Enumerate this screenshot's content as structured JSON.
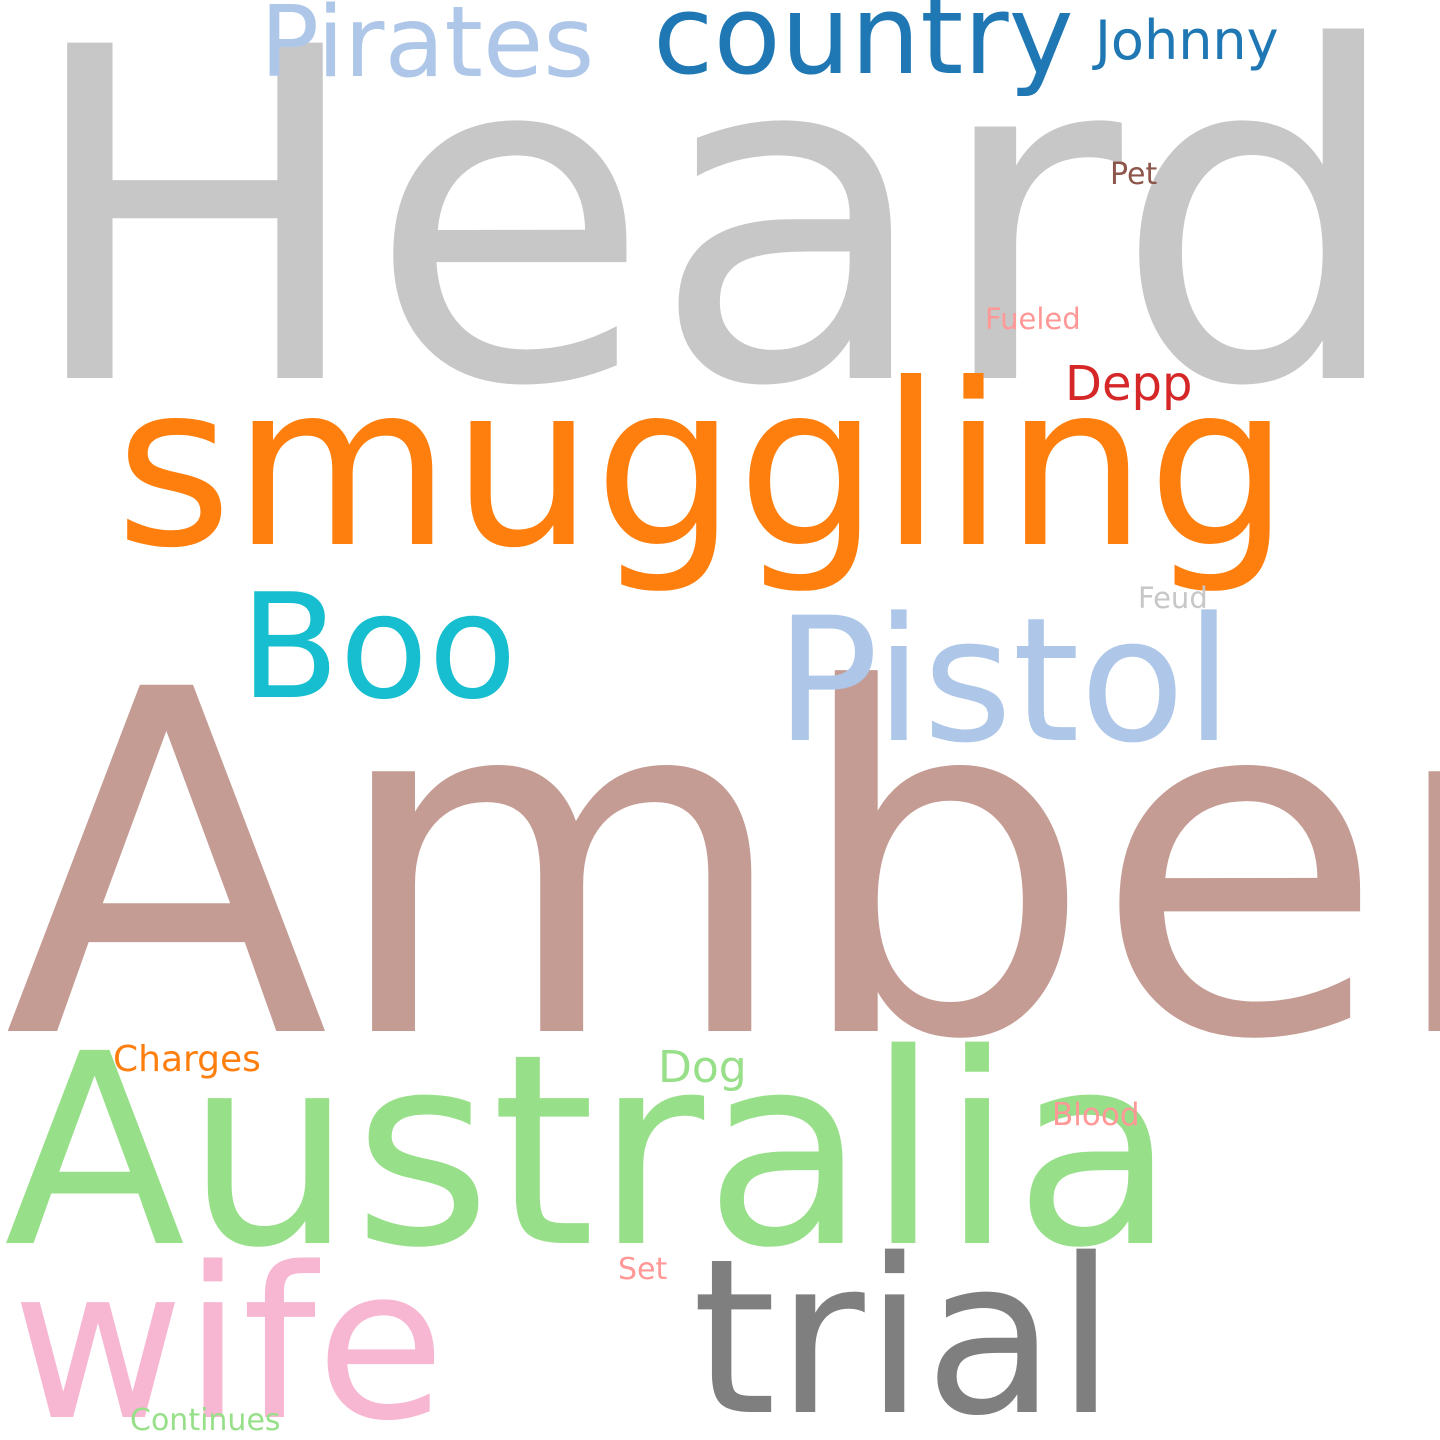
{
  "words": [
    {
      "text": "Heard",
      "color": "#c7c7c7"
    },
    {
      "text": "Amber",
      "color": "#c49c94"
    },
    {
      "text": "smuggling",
      "color": "#ff7f0e"
    },
    {
      "text": "Australia",
      "color": "#98df8a"
    },
    {
      "text": "Pistol",
      "color": "#aec7e8"
    },
    {
      "text": "trial",
      "color": "#7f7f7f"
    },
    {
      "text": "wife",
      "color": "#f7b6d2"
    },
    {
      "text": "Boo",
      "color": "#17becf"
    },
    {
      "text": "country",
      "color": "#1f77b4"
    },
    {
      "text": "Pirates",
      "color": "#aec7e8"
    },
    {
      "text": "Johnny",
      "color": "#1f77b4"
    },
    {
      "text": "Depp",
      "color": "#d62728"
    },
    {
      "text": "Pet",
      "color": "#8c564b"
    },
    {
      "text": "Fueled",
      "color": "#ff9896"
    },
    {
      "text": "Feud",
      "color": "#c7c7c7"
    },
    {
      "text": "Dog",
      "color": "#98df8a"
    },
    {
      "text": "Charges",
      "color": "#ff7f0e"
    },
    {
      "text": "Blood",
      "color": "#ff9896"
    },
    {
      "text": "Set",
      "color": "#ff9896"
    },
    {
      "text": "Continues",
      "color": "#98df8a"
    }
  ]
}
